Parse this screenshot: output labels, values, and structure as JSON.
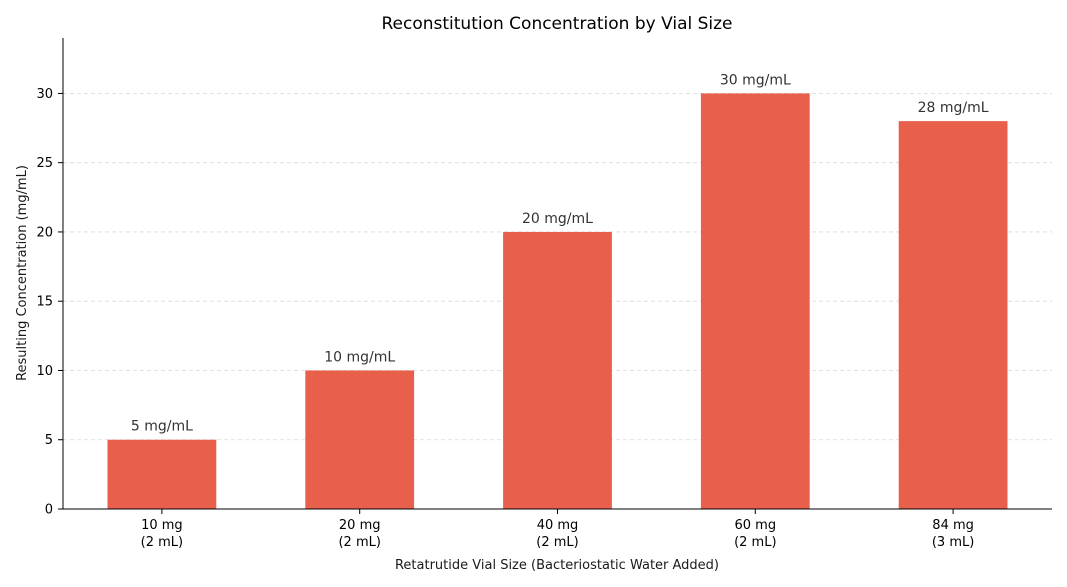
{
  "chart_data": {
    "type": "bar",
    "title": "Reconstitution Concentration by Vial Size",
    "xlabel": "Retatrutide Vial Size (Bacteriostatic Water Added)",
    "ylabel": "Resulting Concentration (mg/mL)",
    "categories": [
      [
        "10 mg",
        "(2 mL)"
      ],
      [
        "20 mg",
        "(2 mL)"
      ],
      [
        "40 mg",
        "(2 mL)"
      ],
      [
        "60 mg",
        "(2 mL)"
      ],
      [
        "84 mg",
        "(3 mL)"
      ]
    ],
    "values": [
      5,
      10,
      20,
      30,
      28
    ],
    "data_labels": [
      "5 mg/mL",
      "10 mg/mL",
      "20 mg/mL",
      "30 mg/mL",
      "28 mg/mL"
    ],
    "ylim": [
      0,
      34
    ],
    "yticks": [
      0,
      5,
      10,
      15,
      20,
      25,
      30
    ],
    "grid": "y-dashed",
    "bar_color": "#e8604c"
  }
}
